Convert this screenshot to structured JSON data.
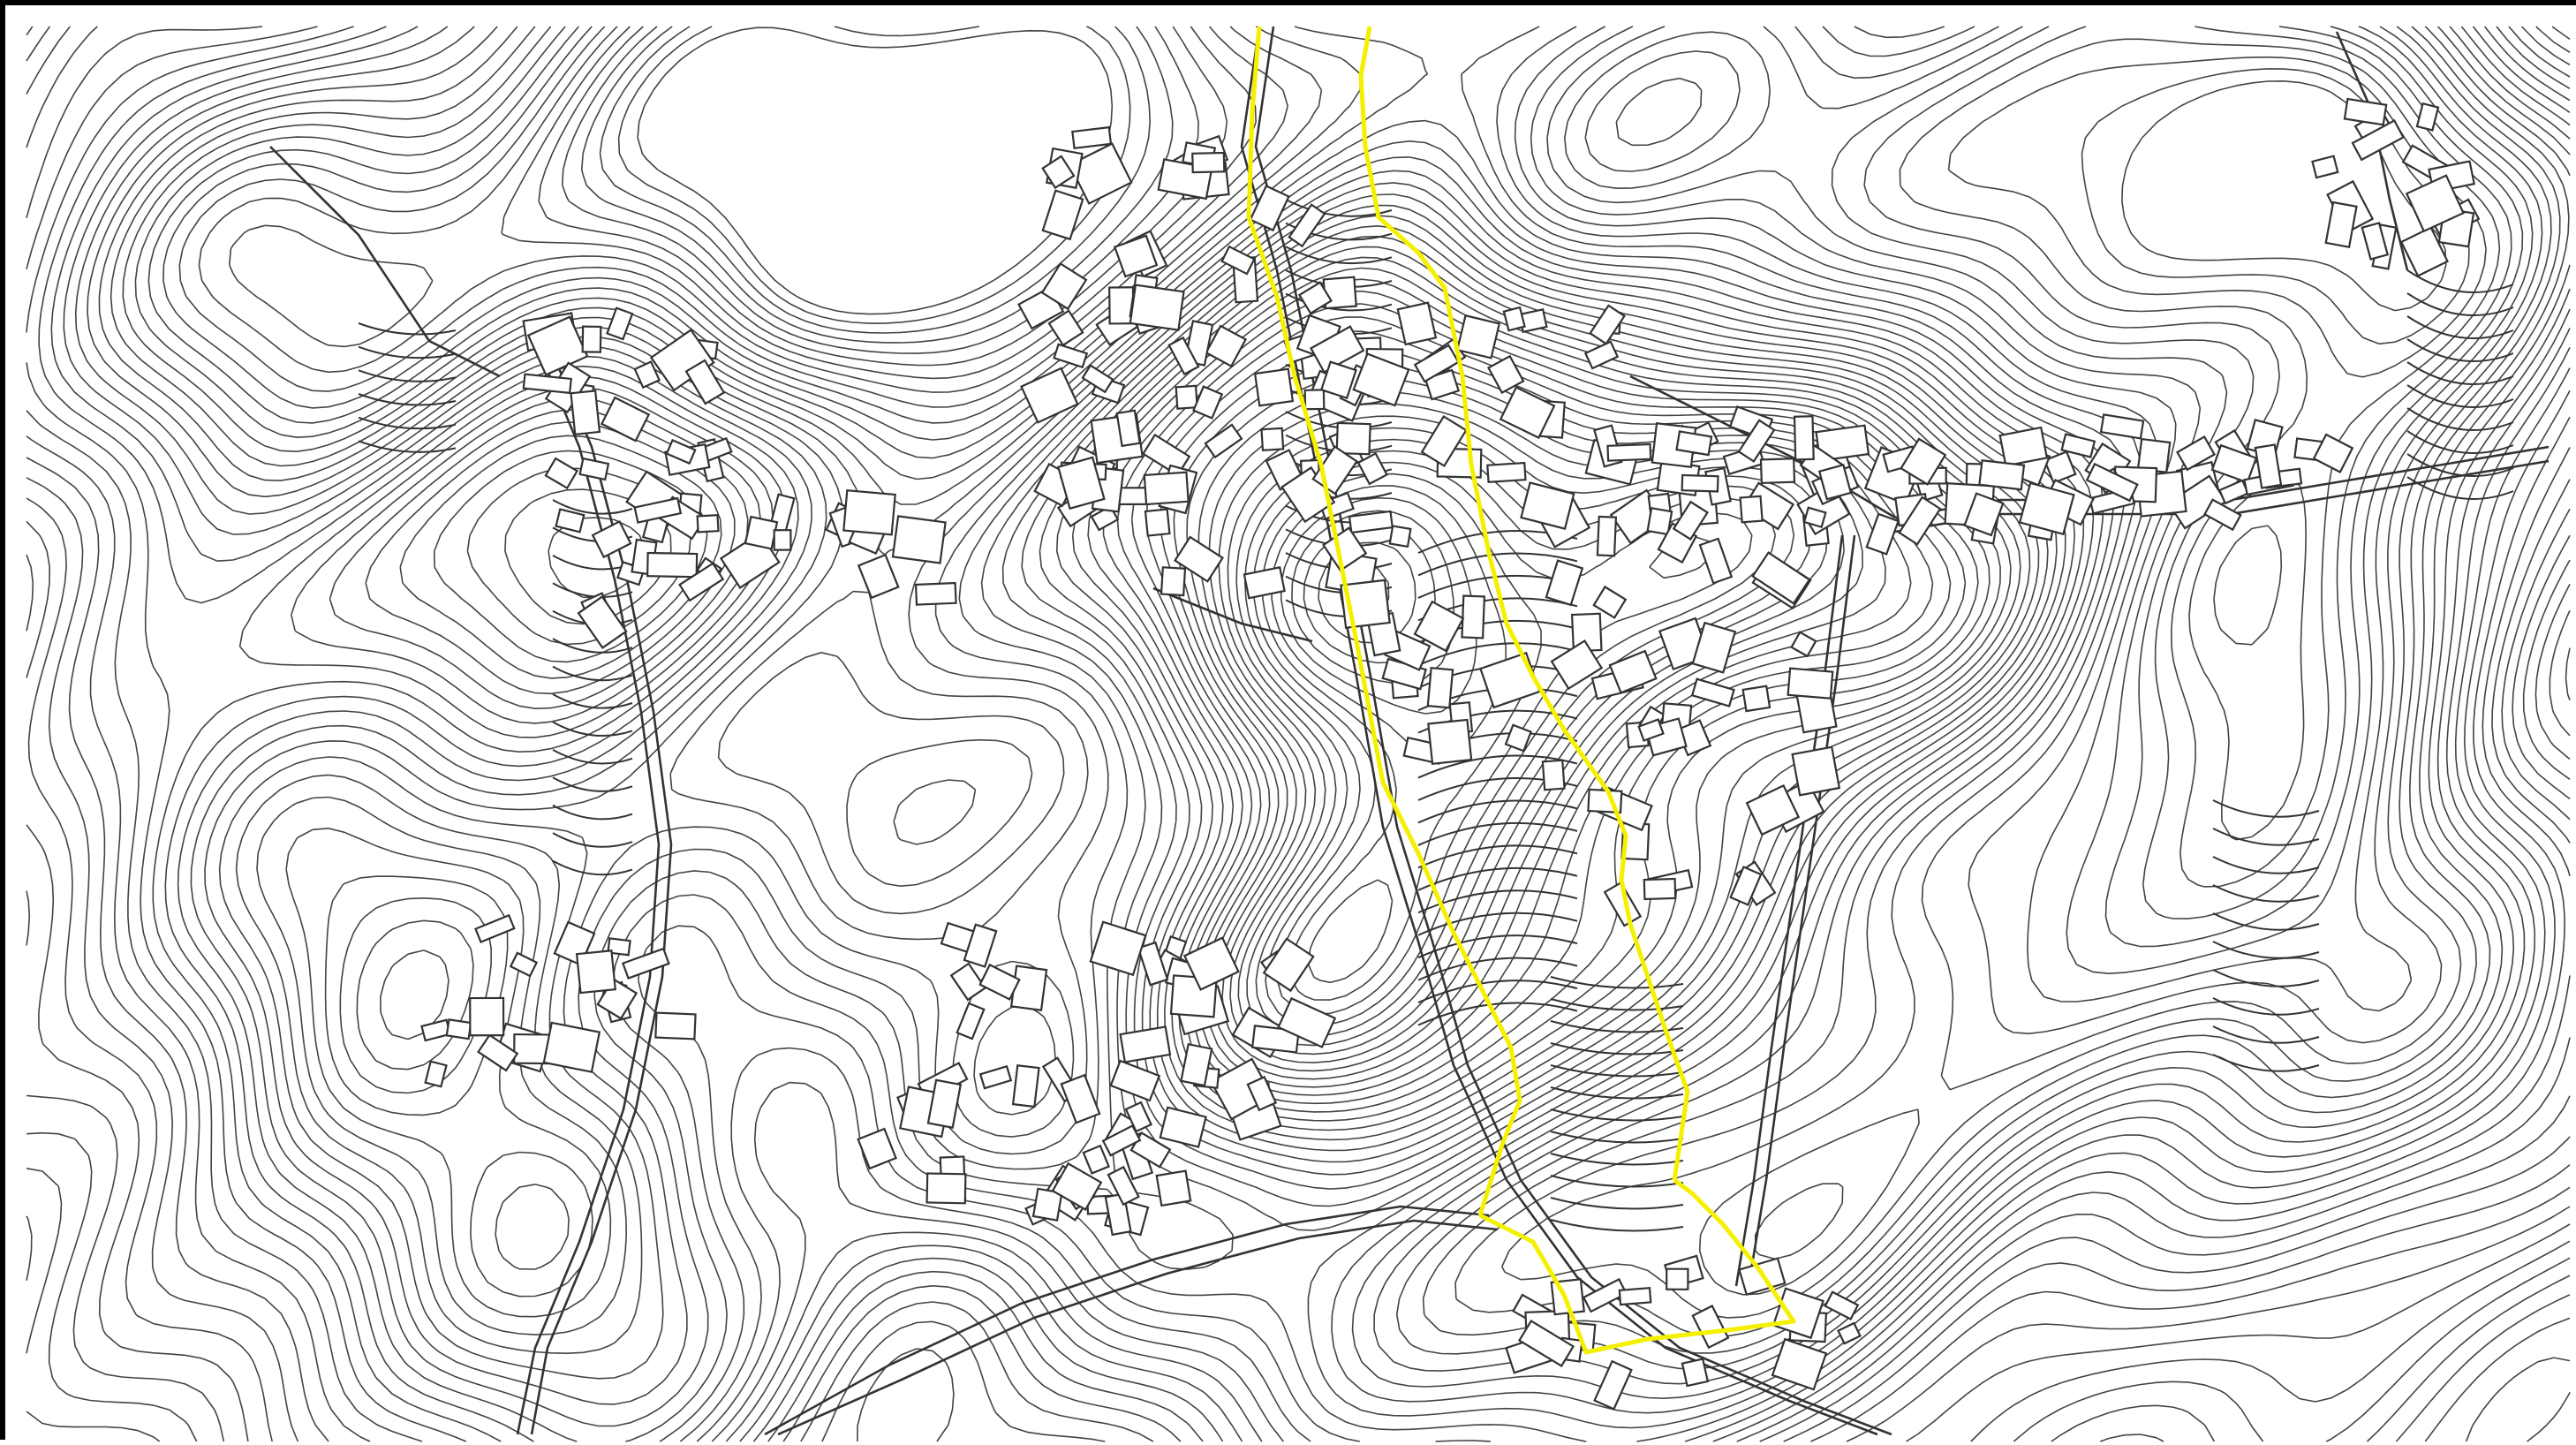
{
  "map": {
    "type": "topographic-site-plan",
    "text_labels": [],
    "colors": {
      "background": "#ffffff",
      "contour_lines": "#444444",
      "buildings": "#333333",
      "roads": "#333333",
      "frame": "#000000",
      "boundary_highlight": "#f4f000"
    },
    "layers": [
      "contour-lines",
      "terraces",
      "buildings",
      "roads",
      "site-boundary"
    ]
  }
}
